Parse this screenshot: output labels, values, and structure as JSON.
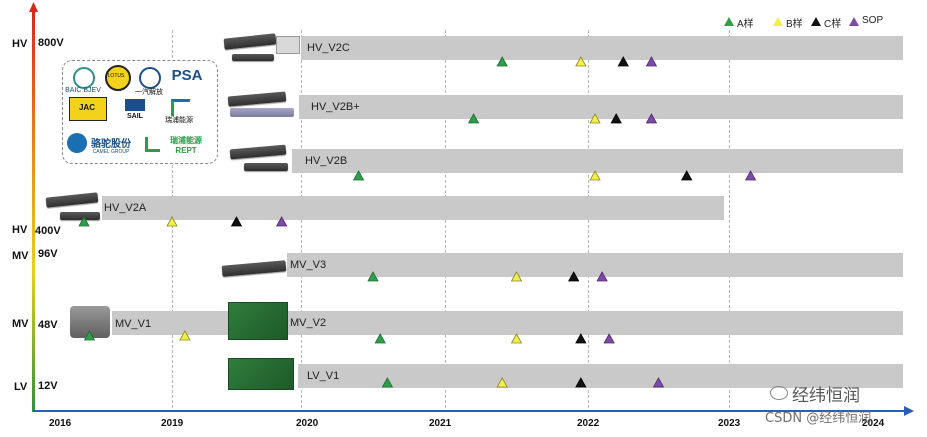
{
  "legend": [
    {
      "label": "A样",
      "color": "#2e9e4a"
    },
    {
      "label": "B样",
      "color": "#f2ef4a"
    },
    {
      "label": "C样",
      "color": "#111111"
    },
    {
      "label": "SOP",
      "color": "#7e4aa8"
    }
  ],
  "y_axis": {
    "levels": [
      {
        "cls": "HV",
        "volt": "800V"
      },
      {
        "cls": "HV",
        "volt": "400V"
      },
      {
        "cls": "MV",
        "volt": "96V"
      },
      {
        "cls": "MV",
        "volt": "48V"
      },
      {
        "cls": "LV",
        "volt": "12V"
      }
    ]
  },
  "x_axis": {
    "ticks": [
      "2016",
      "2019",
      "2020",
      "2021",
      "2022",
      "2023",
      "2024"
    ]
  },
  "products": [
    {
      "name": "HV_V2C",
      "start": 2019.95,
      "end": 2024.2,
      "milestones": {
        "A": 2021.4,
        "B": 2021.95,
        "C": 2022.25,
        "SOP": 2022.45
      }
    },
    {
      "name": "HV_V2B+",
      "start": 2019.95,
      "end": 2024.2,
      "milestones": {
        "A": 2021.2,
        "B": 2022.05,
        "C": 2022.2,
        "SOP": 2022.45
      }
    },
    {
      "name": "HV_V2B",
      "start": 2019.9,
      "end": 2024.2,
      "milestones": {
        "A": 2020.4,
        "B": 2022.05,
        "C": 2022.7,
        "SOP": 2023.15
      }
    },
    {
      "name": "HV_V2A",
      "start": 2016.5,
      "end": 2023.0,
      "milestones": {
        "A": 2016.6,
        "B": 2019.0,
        "C": 2019.5,
        "SOP": 2019.85
      }
    },
    {
      "name": "MV_V3",
      "start": 2019.85,
      "end": 2024.2,
      "milestones": {
        "A": 2020.5,
        "B": 2021.5,
        "C": 2021.9,
        "SOP": 2022.1
      }
    },
    {
      "name": "MV_V1",
      "start": 2016.6,
      "end": 2019.85,
      "milestones": {
        "A": 2016.75,
        "B": 2019.1
      }
    },
    {
      "name": "MV_V2",
      "start": 2019.85,
      "end": 2024.2,
      "milestones": {
        "A": 2020.55,
        "B": 2021.5,
        "C": 2021.95,
        "SOP": 2022.15
      }
    },
    {
      "name": "LV_V1",
      "start": 2019.85,
      "end": 2024.2,
      "milestones": {
        "A": 2020.6,
        "B": 2021.4,
        "C": 2021.95,
        "SOP": 2022.5
      }
    }
  ],
  "logos": [
    {
      "name": "BAIC BJEV",
      "icon": "baic-logo"
    },
    {
      "name": "LOTUS",
      "icon": "lotus-logo"
    },
    {
      "name": "一汽解放",
      "icon": "faw-logo"
    },
    {
      "name": "PSA",
      "icon": "psa-logo"
    },
    {
      "name": "JAC",
      "icon": "jac-logo"
    },
    {
      "name": "SAIL",
      "icon": "sail-logo"
    },
    {
      "name": "瑞浦能源",
      "icon": "rept-logo"
    },
    {
      "name": "骆驼股份",
      "icon": "camel-logo"
    },
    {
      "name": "CAMEL GROUP",
      "icon": "camel-subtext"
    },
    {
      "name": "瑞浦能源 REPT",
      "icon": "rept-logo-2"
    }
  ],
  "watermark": {
    "brand": "经纬恒润",
    "csdn": "CSDN @经纬恒润"
  }
}
